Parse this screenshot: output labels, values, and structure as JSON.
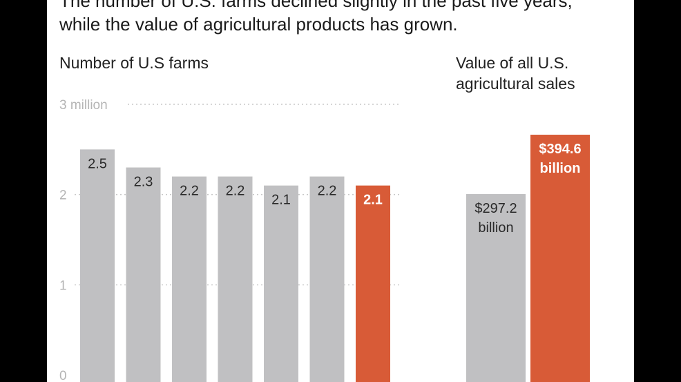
{
  "headline": "The number of U.S. farms declined slightly in the past five years, while the value of agricultural products has grown.",
  "colors": {
    "gray_bar": "#c0c0c2",
    "highlight_bar": "#d85b37",
    "tick_text": "#b5b5b5",
    "label_dark": "#2a2a2a",
    "label_light": "#ffffff"
  },
  "chart_data": [
    {
      "type": "bar",
      "title": "Number of U.S farms",
      "values": [
        2.5,
        2.3,
        2.2,
        2.2,
        2.1,
        2.2,
        2.1
      ],
      "data_labels": [
        "2.5",
        "2.3",
        "2.2",
        "2.2",
        "2.1",
        "2.2",
        "2.1"
      ],
      "highlight_index": 6,
      "ylim": [
        0,
        3
      ],
      "yticks": [
        {
          "value": 0,
          "label": "0"
        },
        {
          "value": 1,
          "label": "1"
        },
        {
          "value": 2,
          "label": "2"
        },
        {
          "value": 3,
          "label": "3 million"
        }
      ],
      "grid": true
    },
    {
      "type": "bar",
      "title": "Value of all U.S. agricultural sales",
      "values": [
        297.2,
        394.6
      ],
      "data_labels": [
        [
          "$297.2",
          "billion"
        ],
        [
          "$394.6",
          "billion"
        ]
      ],
      "highlight_index": 1,
      "unit": "billion dollars"
    }
  ]
}
